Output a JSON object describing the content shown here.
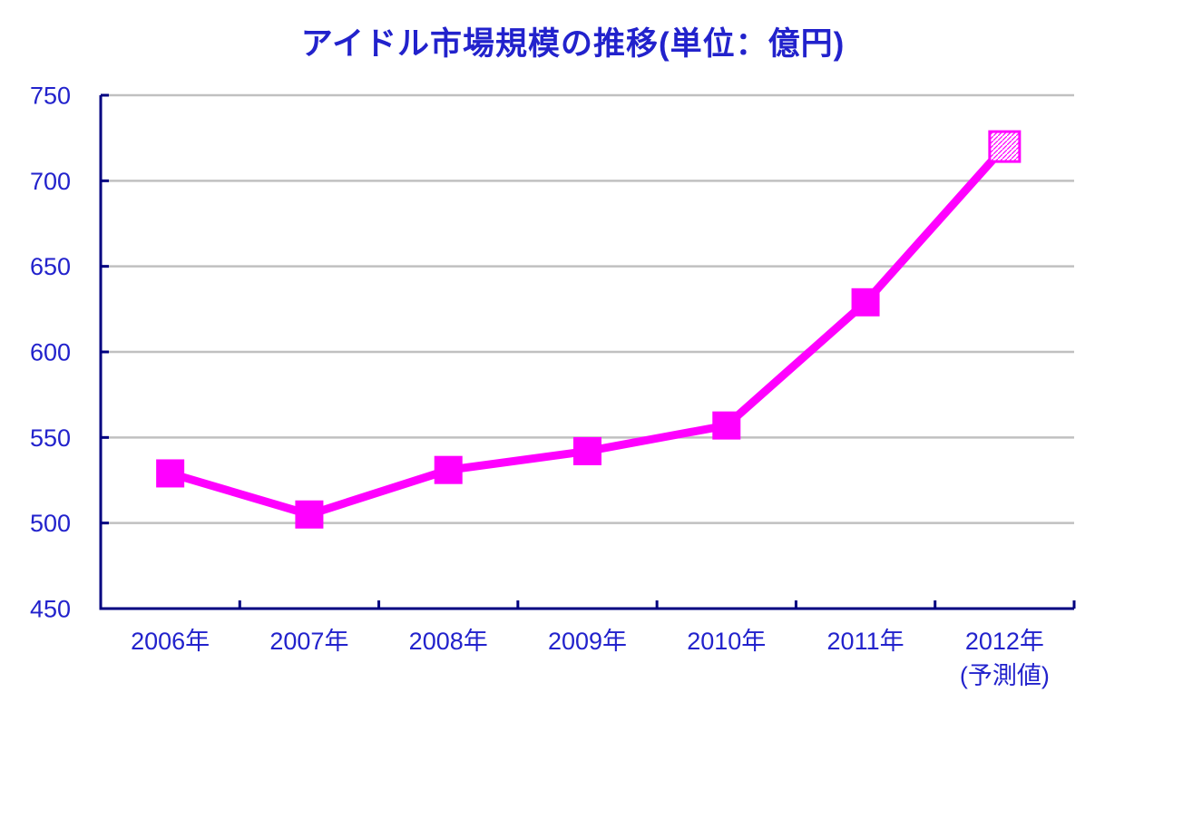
{
  "chart_data": {
    "type": "line",
    "title": "アイドル市場規模の推移(単位：億円)",
    "categories": [
      "2006年",
      "2007年",
      "2008年",
      "2009年",
      "2010年",
      "2011年",
      "2012年"
    ],
    "forecast_note": {
      "category_index": 6,
      "text": "(予測値)"
    },
    "values": [
      529,
      505,
      531,
      542,
      557,
      629,
      720
    ],
    "ylim": [
      450,
      750
    ],
    "y_ticks": [
      450,
      500,
      550,
      600,
      650,
      700,
      750
    ],
    "xlabel": "",
    "ylabel": "",
    "grid": true,
    "legend": "none",
    "marker": "square",
    "last_point_marker": "hatched-square-forecast",
    "colors": {
      "line": "#FF00FF",
      "marker": "#FF00FF",
      "text": "#2222CC",
      "axis": "#000080",
      "gridline": "#C0C0C0",
      "background": "#FFFFFF"
    }
  }
}
